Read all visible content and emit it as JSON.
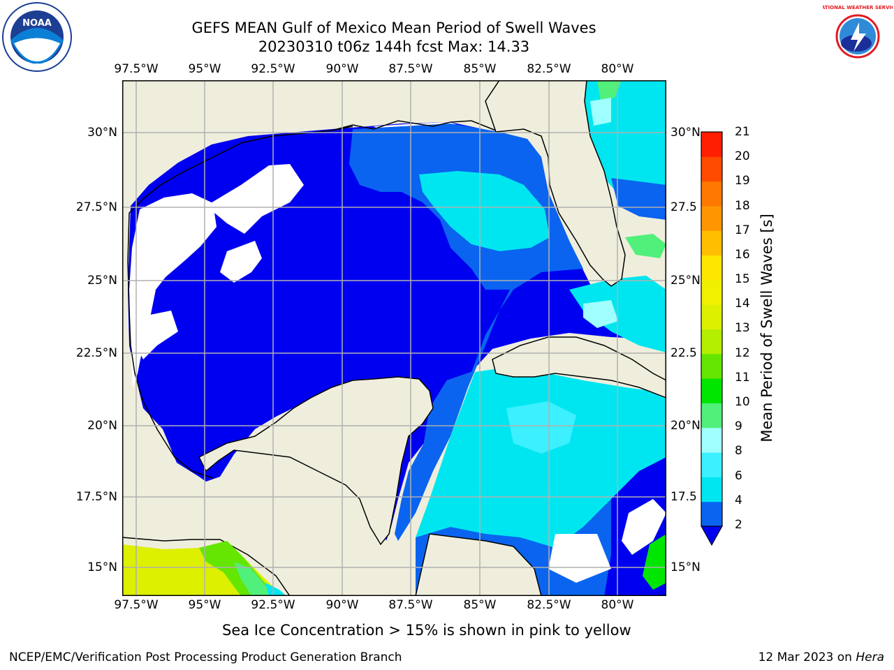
{
  "header": {
    "title_line1": "GEFS MEAN Gulf of Mexico Mean Period of Swell Waves",
    "title_line2": "20230310 t06z 144h fcst   Max: 14.33"
  },
  "logos": {
    "left": {
      "icon": "noaa-logo-icon",
      "text": "NOAA"
    },
    "right": {
      "icon": "nws-logo-icon",
      "text": "NATIONAL WEATHER SERVICE"
    }
  },
  "map": {
    "lon_ticks": [
      "97.5°W",
      "95°W",
      "92.5°W",
      "90°W",
      "87.5°W",
      "85°W",
      "82.5°W",
      "80°W"
    ],
    "lat_ticks_left": [
      "30°N",
      "27.5°N",
      "25°N",
      "22.5°N",
      "20°N",
      "17.5°N",
      "15°N"
    ],
    "lat_ticks_right": [
      "30°N",
      "27.5",
      "25°N",
      "22.5",
      "20°N",
      "17.5",
      "15°N"
    ],
    "lon_range": [
      -98,
      -78
    ],
    "lat_range": [
      14,
      32
    ],
    "colors": {
      "land": "#efeedd",
      "grid": "#b0b0b0",
      "coast": "#000000"
    }
  },
  "colorbar": {
    "label": "Mean Period of Swell Waves [s]",
    "ticks": [
      "2",
      "4",
      "6",
      "8",
      "9",
      "10",
      "11",
      "12",
      "13",
      "14",
      "15",
      "16",
      "17",
      "18",
      "19",
      "20",
      "21"
    ],
    "colors": [
      "#0a64f0",
      "#00e6f0",
      "#3cf0ff",
      "#a0ffff",
      "#50f07a",
      "#00e600",
      "#64e600",
      "#b4ee00",
      "#dcf000",
      "#f0f000",
      "#ffe600",
      "#ffbe00",
      "#ff9600",
      "#ff7800",
      "#ff4b00",
      "#ff1e00"
    ],
    "extend_color": "#0000f0"
  },
  "footer": {
    "note": "Sea Ice Concentration > 15% is shown in pink to yellow",
    "producer": "NCEP/EMC/Verification Post Processing Product Generation Branch",
    "date_prefix": "12 Mar 2023 on ",
    "host": "Hera"
  }
}
